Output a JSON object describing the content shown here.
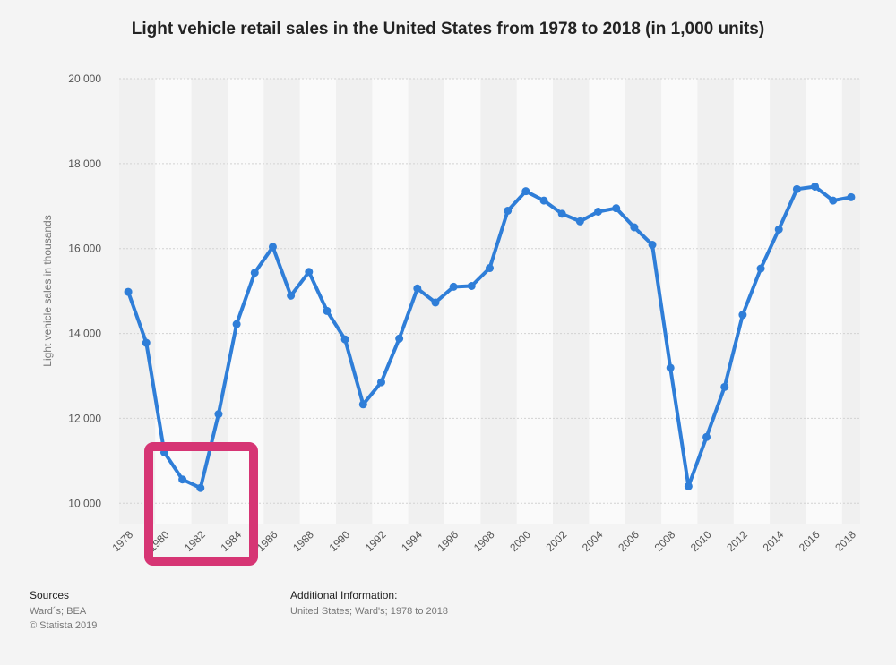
{
  "chart_data": {
    "type": "line",
    "title": "Light vehicle retail sales in the United States from 1978 to 2018 (in 1,000 units)",
    "xlabel": "",
    "ylabel": "Light vehicle sales in thousands",
    "x": [
      1978,
      1979,
      1980,
      1981,
      1982,
      1983,
      1984,
      1985,
      1986,
      1987,
      1988,
      1989,
      1990,
      1991,
      1992,
      1993,
      1994,
      1995,
      1996,
      1997,
      1998,
      1999,
      2000,
      2001,
      2002,
      2003,
      2004,
      2005,
      2006,
      2007,
      2008,
      2009,
      2010,
      2011,
      2012,
      2013,
      2014,
      2015,
      2016,
      2017,
      2018
    ],
    "values": [
      14980,
      13780,
      11200,
      10560,
      10360,
      12100,
      14220,
      15430,
      16040,
      14890,
      15450,
      14530,
      13860,
      12330,
      12850,
      13880,
      15060,
      14730,
      15100,
      15120,
      15540,
      16890,
      17350,
      17130,
      16820,
      16640,
      16870,
      16950,
      16500,
      16090,
      13190,
      10400,
      11560,
      12740,
      14440,
      15530,
      16450,
      17400,
      17460,
      17130,
      17210
    ],
    "ylim": [
      9500,
      20000
    ],
    "yticks": [
      10000,
      12000,
      14000,
      16000,
      18000,
      20000
    ],
    "ytick_labels": [
      "10 000",
      "12 000",
      "14 000",
      "16 000",
      "18 000",
      "20 000"
    ],
    "xtick_labels": [
      "1978",
      "1980",
      "1982",
      "1984",
      "1986",
      "1988",
      "1990",
      "1992",
      "1994",
      "1996",
      "1998",
      "2000",
      "2002",
      "2004",
      "2006",
      "2008",
      "2010",
      "2012",
      "2014",
      "2016",
      "2018"
    ],
    "line_color": "#2f7ed8",
    "highlight_color": "#d63574",
    "grid": true
  },
  "footer": {
    "sources_heading": "Sources",
    "sources_line1": "Ward´s; BEA",
    "sources_line2": "© Statista 2019",
    "additional_heading": "Additional Information:",
    "additional_line": "United States; Ward's; 1978 to 2018"
  }
}
